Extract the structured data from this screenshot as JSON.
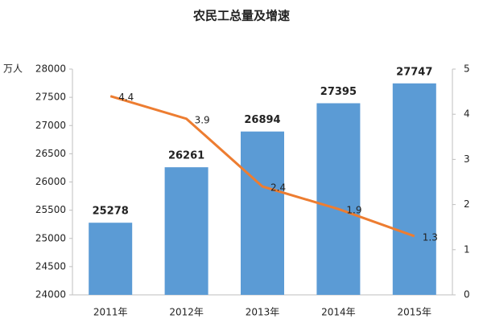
{
  "chart_data": {
    "type": "combo",
    "title": "农民工总量及增速",
    "ylabel": "万人",
    "categories": [
      "2011年",
      "2012年",
      "2013年",
      "2014年",
      "2015年"
    ],
    "series": [
      {
        "type": "bar",
        "color": "#5b9bd5",
        "values": [
          25278,
          26261,
          26894,
          27395,
          27747
        ]
      },
      {
        "type": "line",
        "axis": "y2",
        "color": "#ed7d31",
        "values": [
          4.4,
          3.9,
          2.4,
          1.9,
          1.3
        ]
      }
    ],
    "ylim": [
      24000,
      28000
    ],
    "yticks": [
      24000,
      24500,
      25000,
      25500,
      26000,
      26500,
      27000,
      27500,
      28000
    ],
    "y2lim": [
      0,
      5
    ],
    "y2ticks": [
      0,
      1,
      2,
      3,
      4,
      5
    ]
  }
}
